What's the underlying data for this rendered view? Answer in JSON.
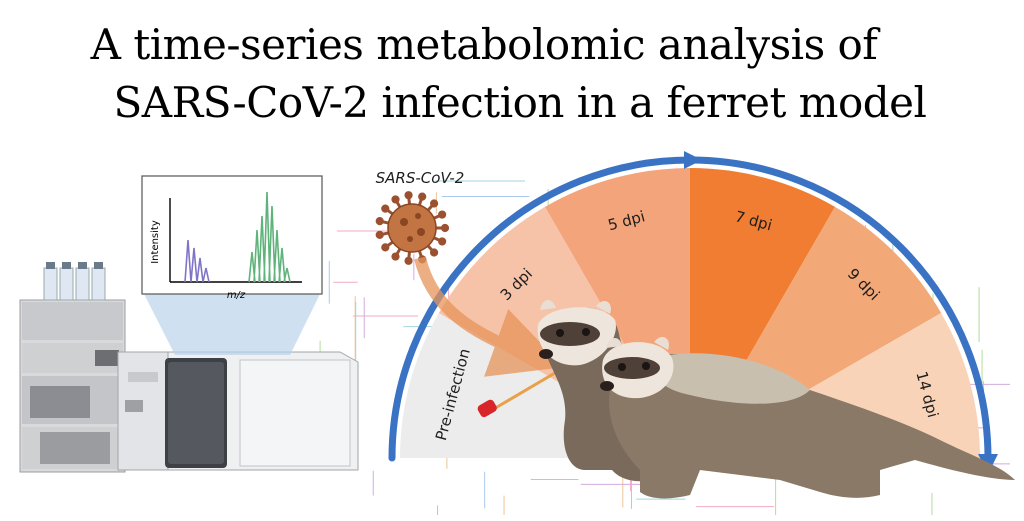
{
  "title": {
    "line1": "A time-series metabolomic analysis of",
    "line2": "SARS-CoV-2 infection in a ferret model"
  },
  "mass_spec": {
    "y_axis_label": "Intensity",
    "x_axis_label": "m/z",
    "peak_colors": [
      "#7f74c8",
      "#5fb37b"
    ]
  },
  "virus": {
    "label": "SARS-CoV-2",
    "color": "#b5653a"
  },
  "timeline": {
    "arrow_color": "#3a73c4",
    "segments": [
      {
        "label": "Pre-infection",
        "color": "#ececec"
      },
      {
        "label": "3 dpi",
        "color": "#f6c3a8"
      },
      {
        "label": "5 dpi",
        "color": "#f3a47b"
      },
      {
        "label": "7 dpi",
        "color": "#f07d32"
      },
      {
        "label": "9 dpi",
        "color": "#f3a877"
      },
      {
        "label": "14 dpi",
        "color": "#f8d3b7"
      }
    ]
  }
}
